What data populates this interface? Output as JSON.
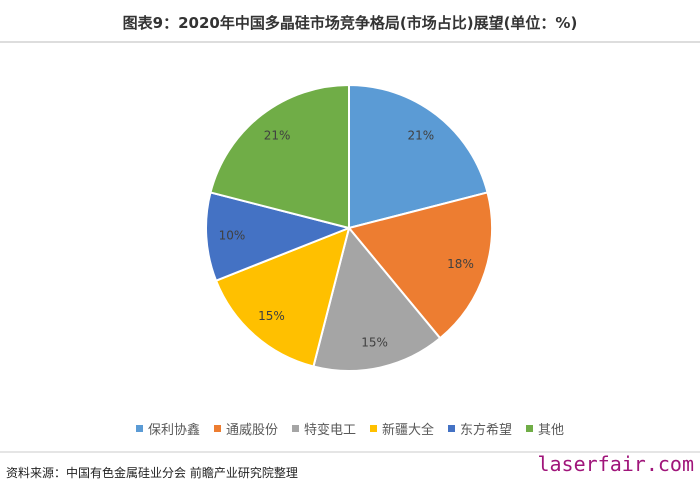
{
  "title": "图表9：2020年中国多晶硅市场竞争格局(市场占比)展望(单位：%)",
  "source": "资料来源：中国有色金属硅业分会 前瞻产业研究院整理",
  "watermark": "laserfair.com",
  "chart_data": {
    "type": "pie",
    "title": "图表9：2020年中国多晶硅市场竞争格局(市场占比)展望(单位：%)",
    "categories": [
      "保利协鑫",
      "通威股份",
      "特变电工",
      "新疆大全",
      "东方希望",
      "其他"
    ],
    "values": [
      21,
      18,
      15,
      15,
      10,
      21
    ],
    "labels": [
      "21%",
      "18%",
      "15%",
      "15%",
      "10%",
      "21%"
    ],
    "colors": [
      "#5B9BD5",
      "#ED7D31",
      "#A5A5A5",
      "#FFC000",
      "#4472C4",
      "#70AD47"
    ],
    "legend": "bottom",
    "start": "top, clockwise"
  }
}
